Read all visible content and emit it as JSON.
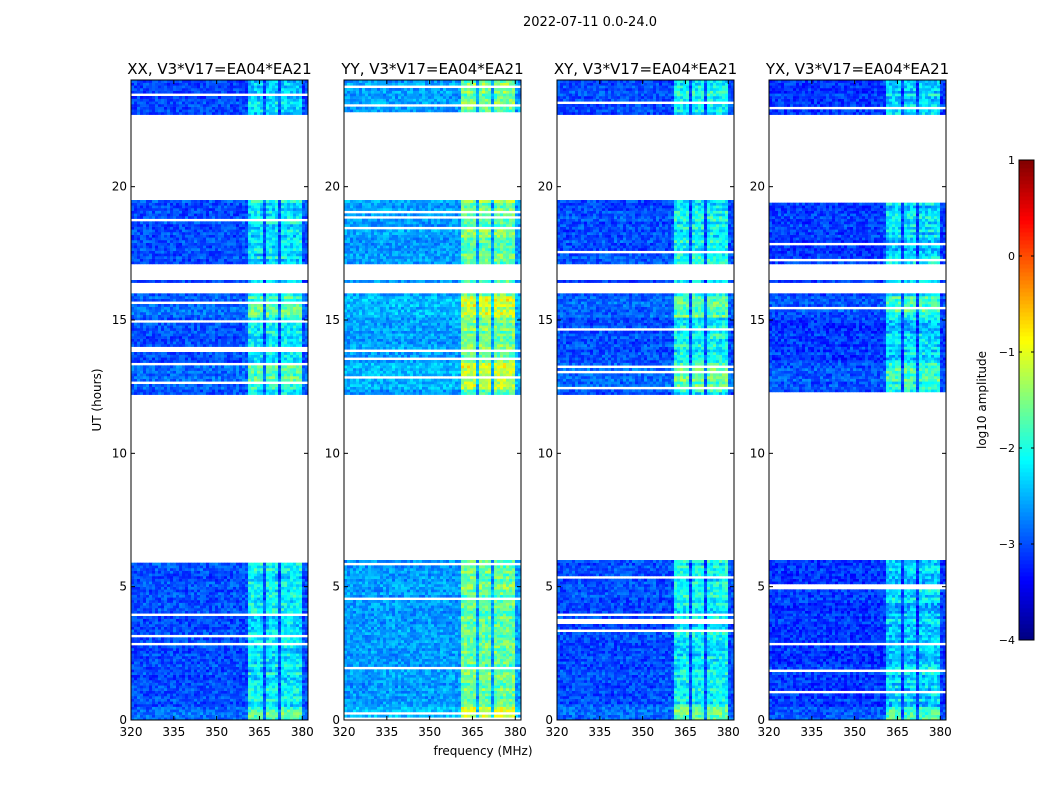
{
  "chart_data": {
    "type": "heatmap",
    "suptitle": "2022-07-11 0.0-24.0",
    "xlabel": "frequency (MHz)",
    "ylabel": "UT (hours)",
    "xlim": [
      320,
      382
    ],
    "ylim": [
      0,
      24
    ],
    "xticks": [
      320,
      335,
      350,
      365,
      380
    ],
    "yticks": [
      0,
      5,
      10,
      15,
      20
    ],
    "colorbar": {
      "label": "log10 amplitude",
      "min": -4,
      "max": 1,
      "ticks": [
        1,
        0,
        -1,
        -2,
        -3,
        -4
      ],
      "colormap": "jet"
    },
    "time_blocks_hours": [
      [
        0,
        6.0
      ],
      [
        12.2,
        16.0
      ],
      [
        16.4,
        16.5
      ],
      [
        17.1,
        19.5
      ],
      [
        22.7,
        24
      ]
    ],
    "rfi_channels_mhz": [
      [
        362,
        366
      ],
      [
        368,
        371
      ],
      [
        373,
        376
      ],
      [
        377,
        379
      ]
    ],
    "panels": [
      {
        "title": "XX, V3*V17=EA04*EA21",
        "base_level": -3.0,
        "rfi_level": -2.2
      },
      {
        "title": "YY, V3*V17=EA04*EA21",
        "base_level": -2.6,
        "rfi_level": -1.6
      },
      {
        "title": "XY, V3*V17=EA04*EA21",
        "base_level": -3.0,
        "rfi_level": -2.1
      },
      {
        "title": "YX, V3*V17=EA04*EA21",
        "base_level": -3.1,
        "rfi_level": -2.3
      }
    ]
  }
}
